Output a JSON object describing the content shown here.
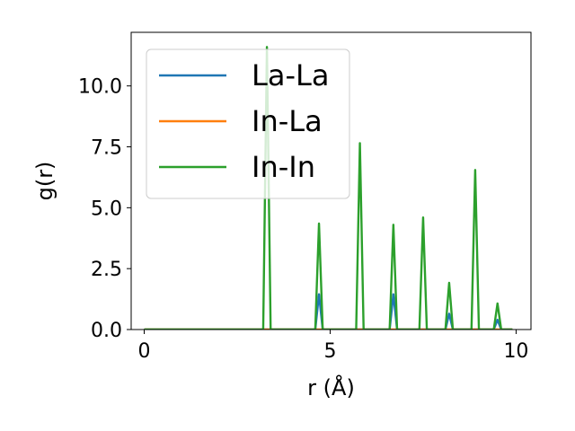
{
  "chart_data": {
    "type": "line",
    "title": "",
    "xlabel": "r (Å)",
    "ylabel": "g(r)",
    "xlim": [
      -0.35,
      10.4
    ],
    "ylim": [
      0,
      12.2
    ],
    "xticks": [
      0,
      5,
      10
    ],
    "xtick_labels": [
      "0",
      "5",
      "10"
    ],
    "yticks": [
      0,
      2.5,
      5,
      7.5,
      10
    ],
    "ytick_labels": [
      "0.0",
      "2.5",
      "5.0",
      "7.5",
      "10.0"
    ],
    "grid": false,
    "legend_position": "top-left",
    "series": [
      {
        "name": "La-La",
        "color": "#1f77b4",
        "x": [
          0,
          4.6,
          4.7,
          4.8,
          5.7,
          5.8,
          5.9,
          6.6,
          6.7,
          6.8,
          8.1,
          8.2,
          8.3,
          9.4,
          9.5,
          9.6,
          9.9
        ],
        "y": [
          0,
          0,
          1.45,
          0,
          0,
          0,
          0,
          0,
          1.45,
          0,
          0,
          0.65,
          0,
          0,
          0.4,
          0,
          0
        ]
      },
      {
        "name": "In-La",
        "color": "#ff7f0e",
        "x": [
          0,
          9.9
        ],
        "y": [
          0,
          0
        ]
      },
      {
        "name": "In-In",
        "color": "#2ca02c",
        "x": [
          0,
          3.2,
          3.3,
          3.4,
          4.6,
          4.7,
          4.8,
          5.7,
          5.8,
          5.9,
          6.6,
          6.7,
          6.8,
          7.4,
          7.5,
          7.6,
          8.1,
          8.2,
          8.3,
          8.8,
          8.9,
          9.0,
          9.4,
          9.5,
          9.6,
          9.9
        ],
        "y": [
          0,
          0,
          11.6,
          0,
          0,
          4.35,
          0,
          0,
          7.65,
          0,
          0,
          4.3,
          0,
          0,
          4.6,
          0,
          0,
          1.92,
          0,
          0,
          6.55,
          0,
          0,
          1.07,
          0,
          0
        ]
      }
    ]
  }
}
